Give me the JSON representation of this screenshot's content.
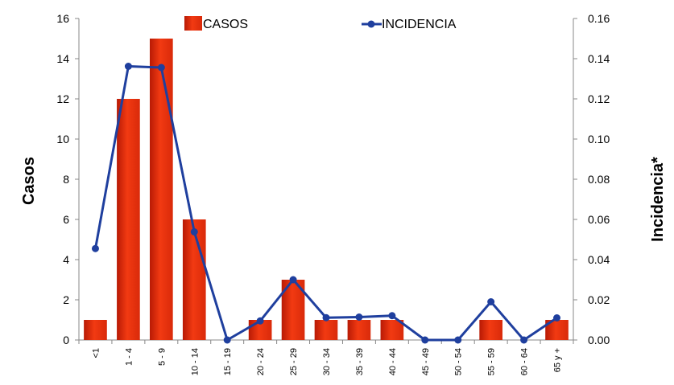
{
  "chart_data": {
    "type": "bar",
    "combo": "bar-line-dual-axis",
    "categories": [
      "<1",
      "1 - 4",
      "5 - 9",
      "10 - 14",
      "15 - 19",
      "20 - 24",
      "25 - 29",
      "30 - 34",
      "35 - 39",
      "40 - 44",
      "45 - 49",
      "50 - 54",
      "55 - 59",
      "60 - 64",
      "65 y +"
    ],
    "series": [
      {
        "name": "CASOS",
        "type": "bar",
        "axis": "left",
        "color": "#e8280c",
        "values": [
          1,
          12,
          15,
          6,
          0,
          1,
          3,
          1,
          1,
          1,
          0,
          0,
          1,
          0,
          1
        ]
      },
      {
        "name": "INCIDENCIA",
        "type": "line",
        "axis": "right",
        "color": "#1f3f9e",
        "values": [
          0.0455,
          0.1362,
          0.1356,
          0.0538,
          0.0,
          0.0095,
          0.03,
          0.0111,
          0.0114,
          0.0121,
          0.0,
          0.0,
          0.019,
          0.0,
          0.011
        ]
      }
    ],
    "ylabel": "Casos",
    "y2label": "Incidencia*",
    "xlabel": "",
    "ylim": [
      0,
      16
    ],
    "y2lim": [
      0,
      0.16
    ],
    "yticks": [
      "0",
      "2",
      "4",
      "6",
      "8",
      "10",
      "12",
      "14",
      "16"
    ],
    "y2ticks": [
      "0.00",
      "0.02",
      "0.04",
      "0.06",
      "0.08",
      "0.10",
      "0.12",
      "0.14",
      "0.16"
    ],
    "grid": false,
    "legend_position": "top"
  }
}
